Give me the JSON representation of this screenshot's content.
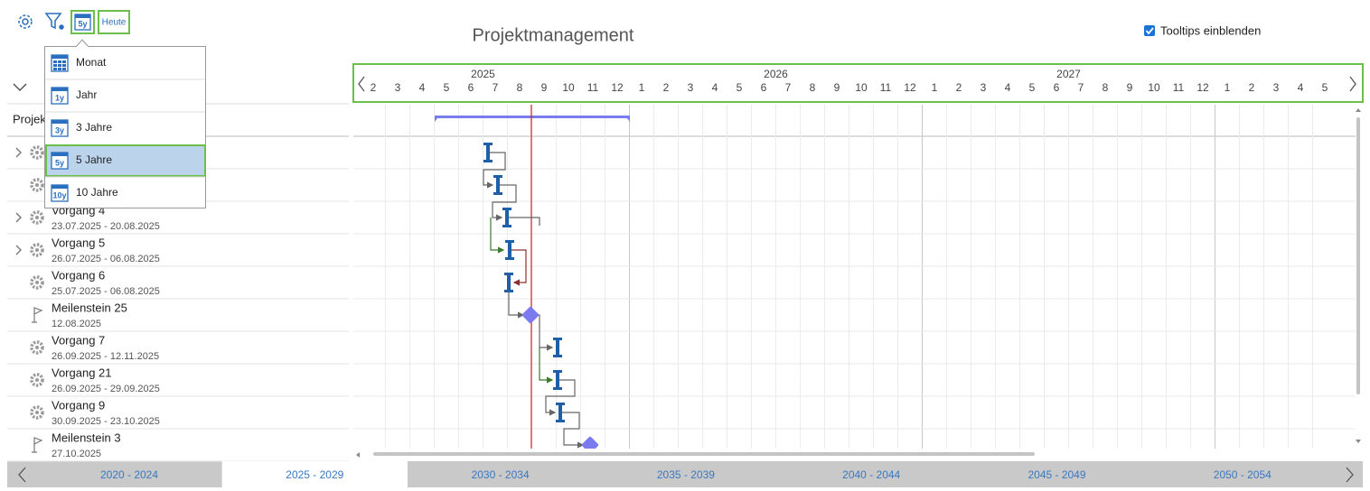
{
  "toolbar": {
    "today": "Heute",
    "range_icon": "5y"
  },
  "title": "Projektmanagement",
  "tooltips_toggle": {
    "label": "Tooltips einblenden",
    "checked": true
  },
  "timeline": {
    "years": [
      "2025",
      "2026",
      "2027"
    ],
    "months": [
      "2",
      "3",
      "4",
      "5",
      "6",
      "7",
      "8",
      "9",
      "10",
      "11",
      "12",
      "1",
      "2",
      "3",
      "4",
      "5",
      "6",
      "7",
      "8",
      "9",
      "10",
      "11",
      "12",
      "1",
      "2",
      "3",
      "4",
      "5",
      "6",
      "7",
      "8",
      "9",
      "10",
      "11",
      "12",
      "1",
      "2",
      "3",
      "4",
      "5"
    ]
  },
  "zoom_menu": {
    "selected": 3,
    "items": [
      {
        "label": "Monat"
      },
      {
        "icon": "1y",
        "label": "Jahr"
      },
      {
        "icon": "3y",
        "label": "3 Jahre"
      },
      {
        "icon": "5y",
        "label": "5 Jahre"
      },
      {
        "icon": "10y",
        "label": "10 Jahre"
      }
    ]
  },
  "list": {
    "header": "Projekt",
    "rows": [
      {
        "name": "Vorgang 4",
        "dates": "23.07.2025 - 20.08.2025"
      },
      {
        "name": "Vorgang 5",
        "dates": "26.07.2025 - 06.08.2025"
      },
      {
        "name": "Vorgang 6",
        "dates": "25.07.2025 - 06.08.2025"
      },
      {
        "name": "Meilenstein 25",
        "dates": "12.08.2025"
      },
      {
        "name": "Vorgang 7",
        "dates": "26.09.2025 - 12.11.2025"
      },
      {
        "name": "Vorgang 21",
        "dates": "26.09.2025 - 29.09.2025"
      },
      {
        "name": "Vorgang 9",
        "dates": "30.09.2025 - 23.10.2025"
      },
      {
        "name": "Meilenstein 3",
        "dates": "27.10.2025"
      }
    ]
  },
  "range_nav": {
    "selected": 1,
    "ranges": [
      "2020 - 2024",
      "2025 - 2029",
      "2030 - 2034",
      "2035 - 2039",
      "2040 - 2044",
      "2045 - 2049",
      "2050 - 2054"
    ]
  }
}
